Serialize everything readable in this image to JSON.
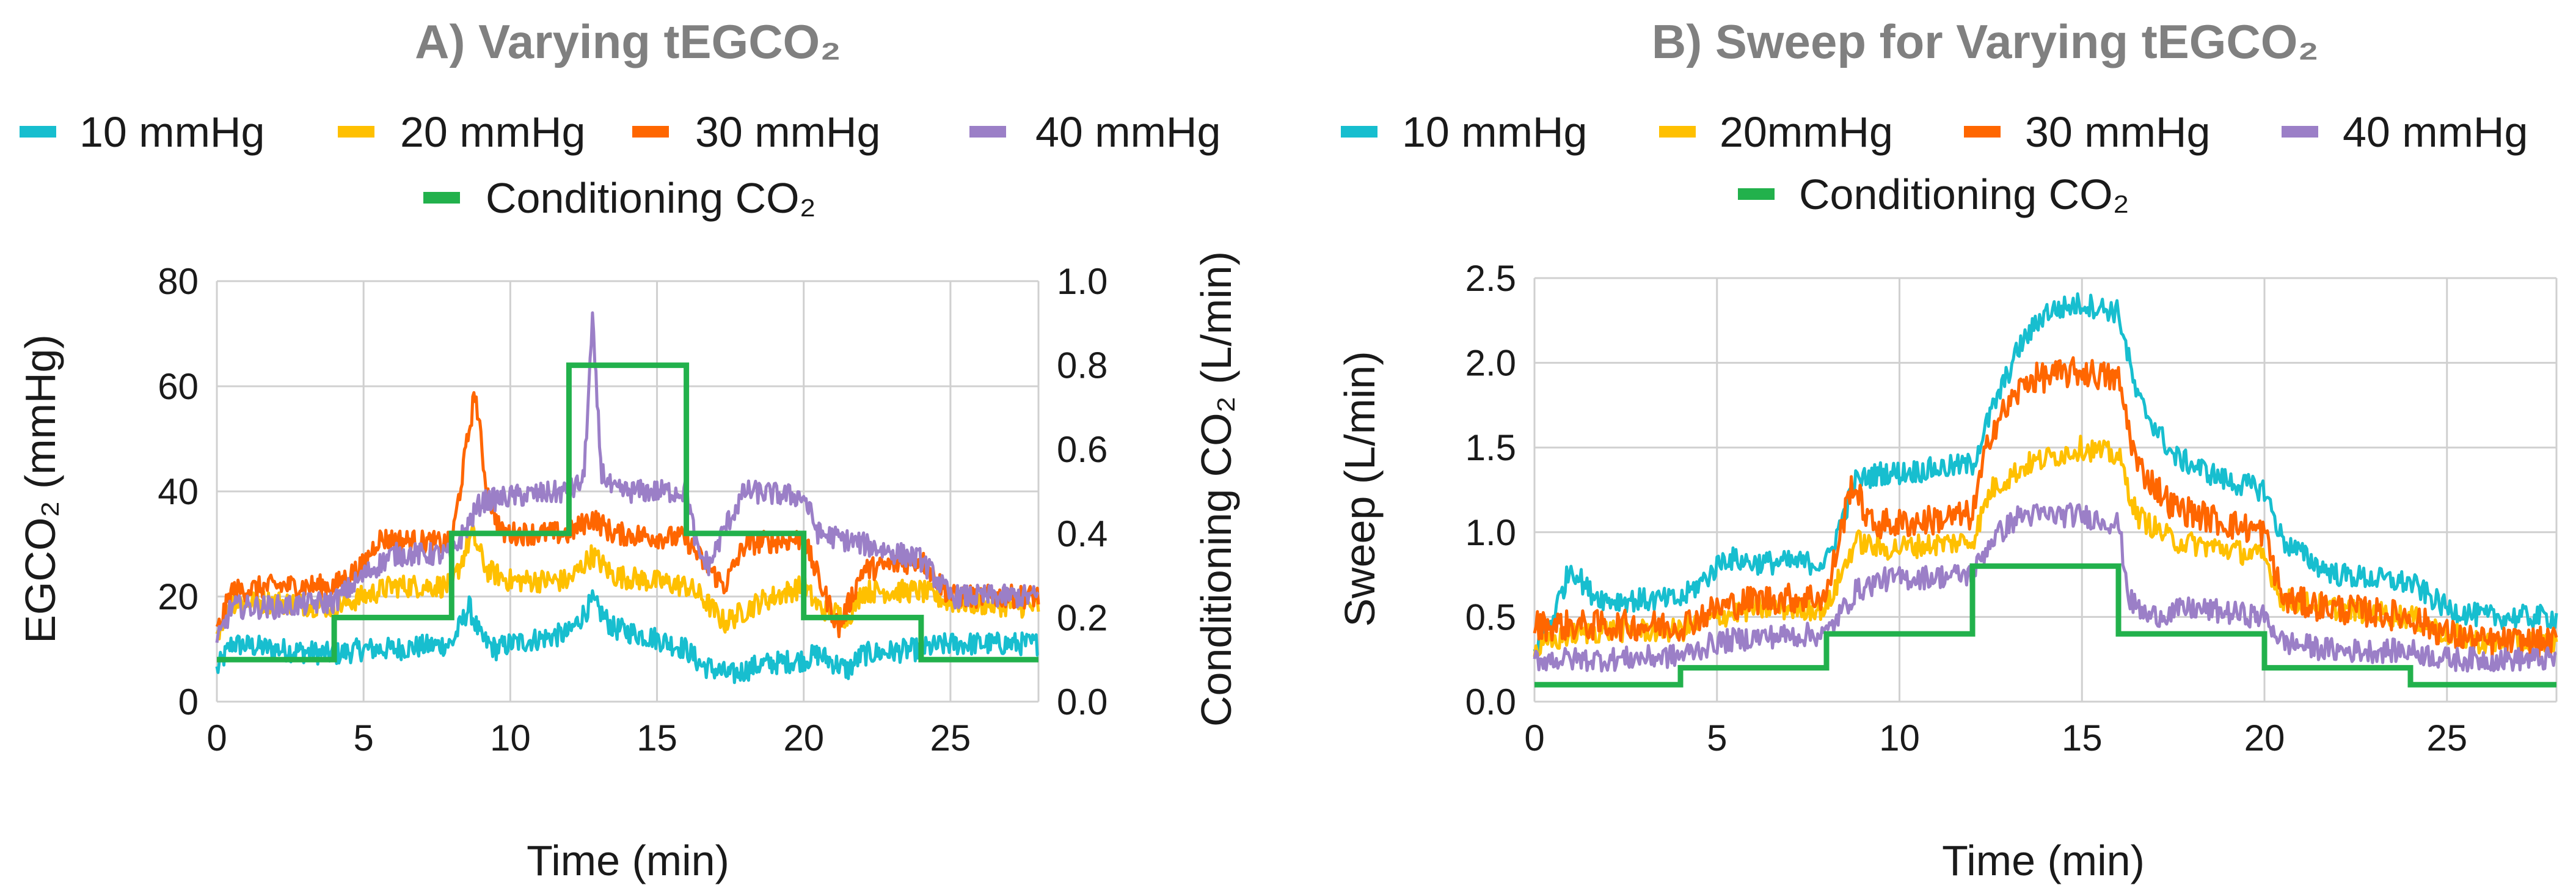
{
  "chart_data": [
    {
      "type": "line",
      "title": "A) Varying tEGCO₂",
      "xlabel": "Time (min)",
      "ylabel": "EGCO₂ (mmHg)",
      "y2label": "Conditioning CO₂ (L/min)",
      "xlim": [
        0,
        28
      ],
      "ylim": [
        0,
        80
      ],
      "y2lim": [
        0,
        1.0
      ],
      "x_ticks": [
        "0",
        "5",
        "10",
        "15",
        "20",
        "25"
      ],
      "y_ticks": [
        "0",
        "20",
        "40",
        "60",
        "80"
      ],
      "y2_ticks": [
        "0.0",
        "0.2",
        "0.4",
        "0.6",
        "0.8",
        "1.0"
      ],
      "grid": true,
      "legend_position": "top",
      "series": [
        {
          "name": "10 mmHg",
          "color": "#17becf",
          "axis": "left",
          "noise": 2.2,
          "x": [
            0,
            0.5,
            2,
            4,
            5,
            6,
            8,
            8.6,
            9,
            9.5,
            10,
            12,
            12.8,
            13.5,
            15,
            16,
            16.5,
            17.5,
            18.5,
            20,
            20.5,
            21.5,
            22,
            24,
            25,
            28
          ],
          "y": [
            6,
            11,
            10,
            9,
            10,
            10,
            11,
            18,
            12,
            10,
            11,
            13,
            19,
            14,
            12,
            10,
            7,
            5,
            7,
            8,
            9,
            6,
            9,
            10,
            11,
            11
          ]
        },
        {
          "name": "20 mmHg",
          "color": "#ffc000",
          "axis": "left",
          "noise": 2.2,
          "x": [
            0,
            0.5,
            2,
            4,
            5,
            6,
            8,
            8.7,
            9.2,
            10,
            12,
            12.8,
            13.5,
            16,
            16.5,
            17.3,
            18.5,
            20,
            20.5,
            21.5,
            22,
            24,
            25,
            28
          ],
          "y": [
            13,
            19,
            19,
            18,
            20,
            22,
            22,
            32,
            25,
            23,
            23,
            28,
            24,
            22,
            20,
            15,
            19,
            22,
            18,
            16,
            21,
            21,
            19,
            18
          ]
        },
        {
          "name": "30 mmHg",
          "color": "#ff6600",
          "axis": "left",
          "noise": 2.2,
          "x": [
            0,
            0.5,
            2,
            4,
            5,
            5.5,
            8,
            8.8,
            9.2,
            9.7,
            10,
            12,
            12.8,
            13.5,
            16,
            16.5,
            17.3,
            18,
            20,
            20.6,
            21.2,
            22,
            24,
            25,
            28
          ],
          "y": [
            13,
            21,
            22,
            22,
            26,
            31,
            30,
            59,
            40,
            32,
            32,
            32,
            35,
            32,
            31,
            27,
            22,
            30,
            31,
            22,
            14,
            25,
            27,
            20,
            20
          ]
        },
        {
          "name": "40 mmHg",
          "color": "#9b7fc7",
          "axis": "left",
          "noise": 2.2,
          "x": [
            0,
            0.5,
            2,
            4,
            5,
            6,
            8,
            8.5,
            9,
            10,
            12,
            12.5,
            12.8,
            13.1,
            13.5,
            16,
            16.4,
            16.8,
            17.3,
            18,
            20,
            20.5,
            22,
            24,
            25,
            28
          ],
          "y": [
            11,
            18,
            18,
            19,
            24,
            28,
            28,
            33,
            38,
            39,
            40,
            42,
            72,
            44,
            40,
            40,
            28,
            26,
            33,
            40,
            39,
            32,
            30,
            27,
            20,
            20
          ]
        },
        {
          "name": "Conditioning CO₂",
          "color": "#22b14c",
          "axis": "right",
          "step": true,
          "x": [
            0,
            4,
            4,
            8,
            8,
            12,
            12,
            16,
            16,
            20,
            20,
            24,
            24,
            28
          ],
          "y": [
            0.1,
            0.1,
            0.2,
            0.2,
            0.4,
            0.4,
            0.8,
            0.8,
            0.4,
            0.4,
            0.2,
            0.2,
            0.1,
            0.1
          ]
        }
      ]
    },
    {
      "type": "line",
      "title": "B) Sweep for Varying tEGCO₂",
      "xlabel": "Time (min)",
      "ylabel": "Sweep (L/min)",
      "xlim": [
        0,
        28
      ],
      "ylim": [
        0,
        2.5
      ],
      "x_ticks": [
        "0",
        "5",
        "10",
        "15",
        "20",
        "25"
      ],
      "y_ticks": [
        "0.0",
        "0.5",
        "1.0",
        "1.5",
        "2.0",
        "2.5"
      ],
      "grid": true,
      "legend_position": "top",
      "series": [
        {
          "name": "10 mmHg",
          "color": "#17becf",
          "noise": 0.07,
          "x": [
            0,
            0.5,
            1,
            1.5,
            2,
            4,
            4.8,
            5.2,
            6,
            8,
            8.8,
            9.5,
            10,
            12,
            12.5,
            13.3,
            14,
            15,
            16,
            16.5,
            17.5,
            19,
            20,
            20.5,
            21.5,
            22,
            24,
            25,
            26,
            28
          ],
          "y": [
            0.3,
            0.5,
            0.8,
            0.65,
            0.6,
            0.6,
            0.75,
            0.85,
            0.82,
            0.82,
            1.3,
            1.35,
            1.35,
            1.4,
            1.7,
            2.1,
            2.3,
            2.35,
            2.3,
            1.8,
            1.45,
            1.3,
            1.25,
            0.95,
            0.8,
            0.75,
            0.7,
            0.55,
            0.5,
            0.5
          ]
        },
        {
          "name": "20mmHg",
          "color": "#ffc000",
          "noise": 0.07,
          "x": [
            0,
            1,
            2,
            4,
            5,
            6,
            8,
            8.8,
            9.5,
            12,
            12.5,
            13.5,
            15,
            16,
            16.5,
            17.5,
            19,
            20,
            20.5,
            22,
            24,
            25,
            26,
            28
          ],
          "y": [
            0.3,
            0.4,
            0.42,
            0.42,
            0.5,
            0.55,
            0.55,
            0.95,
            0.9,
            0.95,
            1.25,
            1.4,
            1.5,
            1.45,
            1.1,
            0.95,
            0.9,
            0.85,
            0.6,
            0.55,
            0.5,
            0.4,
            0.35,
            0.35
          ]
        },
        {
          "name": "30 mmHg",
          "color": "#ff6600",
          "noise": 0.09,
          "x": [
            0,
            1,
            2,
            4,
            5,
            6,
            8,
            8.7,
            9.2,
            10,
            12,
            12.5,
            13.5,
            15,
            16,
            16.5,
            17.5,
            19,
            20,
            20.5,
            22,
            24,
            25,
            26,
            28
          ],
          "y": [
            0.45,
            0.45,
            0.45,
            0.45,
            0.55,
            0.6,
            0.62,
            1.3,
            1.05,
            1.05,
            1.1,
            1.6,
            1.9,
            1.95,
            1.9,
            1.4,
            1.15,
            1.05,
            1.0,
            0.6,
            0.55,
            0.5,
            0.4,
            0.35,
            0.35
          ]
        },
        {
          "name": "40 mmHg",
          "color": "#9b7fc7",
          "noise": 0.07,
          "x": [
            0,
            2,
            4,
            5,
            6,
            8,
            8.8,
            9.5,
            12,
            12.5,
            13.3,
            15,
            16,
            16.3,
            16.8,
            18,
            20,
            20.5,
            22,
            24,
            25,
            26,
            28
          ],
          "y": [
            0.25,
            0.25,
            0.27,
            0.35,
            0.38,
            0.4,
            0.65,
            0.72,
            0.75,
            0.95,
            1.1,
            1.1,
            1.05,
            0.6,
            0.5,
            0.55,
            0.5,
            0.35,
            0.3,
            0.3,
            0.25,
            0.25,
            0.25
          ]
        },
        {
          "name": "Conditioning CO₂",
          "color": "#22b14c",
          "step": true,
          "x": [
            0,
            4,
            4,
            8,
            8,
            12,
            12,
            16,
            16,
            20,
            20,
            24,
            24,
            28
          ],
          "y": [
            0.1,
            0.1,
            0.2,
            0.2,
            0.4,
            0.4,
            0.8,
            0.8,
            0.4,
            0.4,
            0.2,
            0.2,
            0.1,
            0.1
          ]
        }
      ]
    }
  ]
}
